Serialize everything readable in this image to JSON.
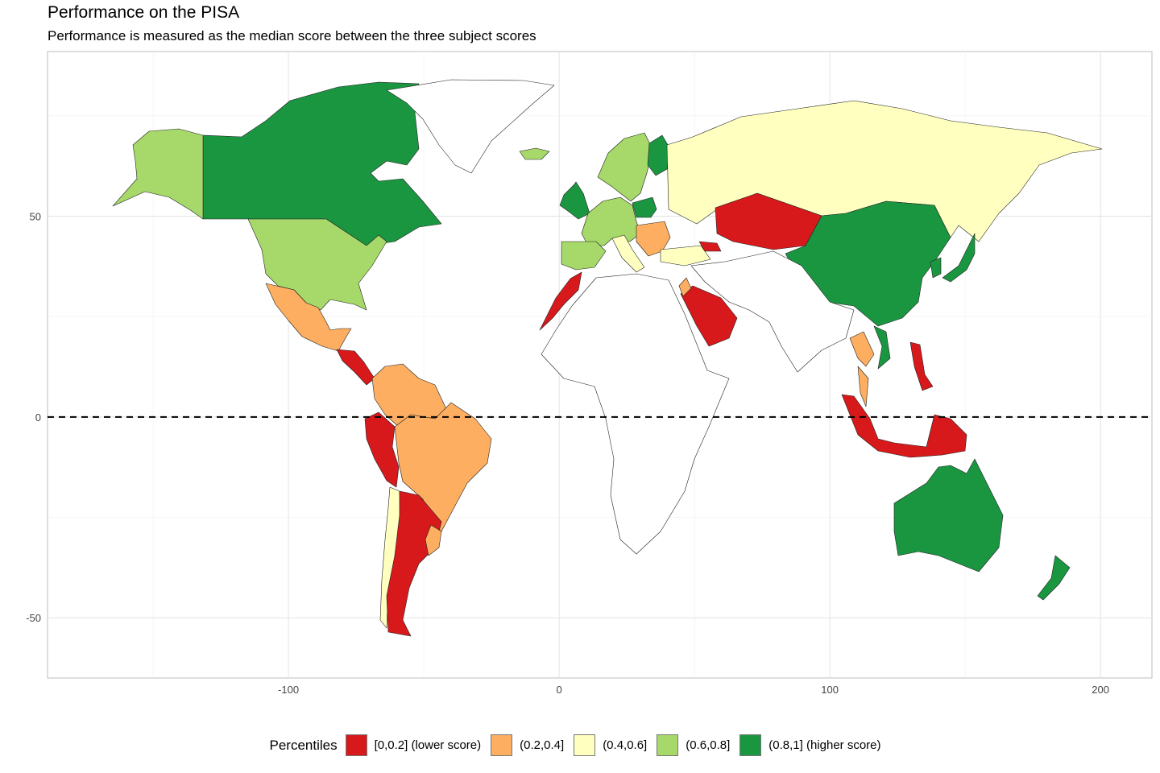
{
  "title": "Performance on the PISA",
  "subtitle": "Performance is measured as the median score between the three subject scores",
  "chart_data": {
    "type": "choropleth",
    "xlim": [
      -189,
      219
    ],
    "ylim": [
      -65,
      91
    ],
    "x_ticks": [
      -100,
      0,
      100,
      200
    ],
    "y_ticks": [
      50,
      0,
      -50
    ],
    "grid": true,
    "reference_line": {
      "y": 0,
      "style": "dashed"
    },
    "legend": {
      "title": "Percentiles",
      "position": "bottom",
      "classes": [
        {
          "label": "[0,0.2] (lower score)",
          "color": "#D7191C"
        },
        {
          "label": "(0.2,0.4]",
          "color": "#FDAE61"
        },
        {
          "label": "(0.4,0.6]",
          "color": "#FFFFBF"
        },
        {
          "label": "(0.6,0.8]",
          "color": "#A6D96A"
        },
        {
          "label": "(0.8,1] (higher score)",
          "color": "#1A9641"
        }
      ]
    },
    "regions": [
      {
        "name": "Canada",
        "class": 4
      },
      {
        "name": "Greenland",
        "class": -1
      },
      {
        "name": "Alaska",
        "class": 3
      },
      {
        "name": "USA",
        "class": 3
      },
      {
        "name": "Mexico",
        "class": 1
      },
      {
        "name": "Central America",
        "class": 0
      },
      {
        "name": "Colombia / Venezuela",
        "class": 1
      },
      {
        "name": "Peru",
        "class": 0
      },
      {
        "name": "Brazil",
        "class": 1
      },
      {
        "name": "Chile",
        "class": 2
      },
      {
        "name": "Argentina",
        "class": 0
      },
      {
        "name": "Uruguay",
        "class": 1
      },
      {
        "name": "Iceland",
        "class": 3
      },
      {
        "name": "UK / Ireland",
        "class": 4
      },
      {
        "name": "Norway / Sweden",
        "class": 3
      },
      {
        "name": "Finland",
        "class": 4
      },
      {
        "name": "Western Europe",
        "class": 3
      },
      {
        "name": "Iberia",
        "class": 3
      },
      {
        "name": "Poland",
        "class": 4
      },
      {
        "name": "Italy",
        "class": 2
      },
      {
        "name": "Balkans",
        "class": 1
      },
      {
        "name": "Turkey",
        "class": 2
      },
      {
        "name": "Russia",
        "class": 2
      },
      {
        "name": "Kazakhstan",
        "class": 0
      },
      {
        "name": "Georgia",
        "class": 0
      },
      {
        "name": "Morocco",
        "class": 0
      },
      {
        "name": "Saudi Arabia",
        "class": 0
      },
      {
        "name": "Jordan",
        "class": 1
      },
      {
        "name": "China / Mongolia",
        "class": 4
      },
      {
        "name": "Korea",
        "class": 4
      },
      {
        "name": "Japan",
        "class": 4
      },
      {
        "name": "Thailand",
        "class": 1
      },
      {
        "name": "Vietnam",
        "class": 4
      },
      {
        "name": "Malaysia",
        "class": 1
      },
      {
        "name": "Indonesia",
        "class": 0
      },
      {
        "name": "Philippines",
        "class": 0
      },
      {
        "name": "Australia",
        "class": 4
      },
      {
        "name": "New Zealand",
        "class": 4
      },
      {
        "name": "Africa",
        "class": -1
      },
      {
        "name": "Middle East / South Asia",
        "class": -1
      }
    ]
  }
}
